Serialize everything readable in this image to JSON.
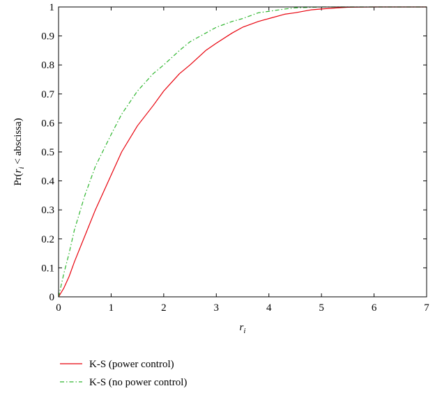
{
  "chart_data": {
    "type": "line",
    "xlabel": "r",
    "xlabel_sub": "i",
    "ylabel_prefix": "Pr(",
    "ylabel_var": "r",
    "ylabel_sub": "i",
    "ylabel_suffix": " < abscissa)",
    "xlim": [
      0,
      7
    ],
    "ylim": [
      0,
      1
    ],
    "x_ticks": [
      "0",
      "1",
      "2",
      "3",
      "4",
      "5",
      "6",
      "7"
    ],
    "y_ticks": [
      "0",
      "0.1",
      "0.2",
      "0.3",
      "0.4",
      "0.5",
      "0.6",
      "0.7",
      "0.8",
      "0.9",
      "1"
    ],
    "grid": false,
    "legend_position": "bottom",
    "series": [
      {
        "name": "K-S (power control)",
        "color": "#e8000b",
        "style": "solid",
        "x": [
          0,
          0.1,
          0.2,
          0.3,
          0.5,
          0.7,
          1.0,
          1.2,
          1.5,
          1.8,
          2.0,
          2.3,
          2.5,
          2.8,
          3.0,
          3.3,
          3.5,
          3.8,
          4.0,
          4.3,
          4.5,
          4.8,
          5.0,
          5.3,
          5.5,
          6.0,
          6.5,
          7.0
        ],
        "values": [
          0,
          0.03,
          0.07,
          0.12,
          0.21,
          0.3,
          0.42,
          0.5,
          0.59,
          0.66,
          0.71,
          0.77,
          0.8,
          0.85,
          0.875,
          0.91,
          0.93,
          0.95,
          0.96,
          0.975,
          0.98,
          0.99,
          0.993,
          0.997,
          0.999,
          1.0,
          1.0,
          1.0
        ]
      },
      {
        "name": "K-S (no power control)",
        "color": "#2db52d",
        "style": "dash-dot",
        "x": [
          0,
          0.1,
          0.2,
          0.3,
          0.5,
          0.7,
          1.0,
          1.2,
          1.5,
          1.8,
          2.0,
          2.3,
          2.5,
          2.8,
          3.0,
          3.3,
          3.5,
          3.8,
          4.0,
          4.3,
          4.5,
          5.0,
          5.5,
          6.0,
          7.0
        ],
        "values": [
          0,
          0.08,
          0.15,
          0.23,
          0.35,
          0.45,
          0.56,
          0.63,
          0.71,
          0.77,
          0.8,
          0.85,
          0.88,
          0.91,
          0.93,
          0.95,
          0.96,
          0.98,
          0.985,
          0.993,
          0.997,
          1.0,
          1.0,
          1.0,
          1.0
        ]
      }
    ]
  }
}
